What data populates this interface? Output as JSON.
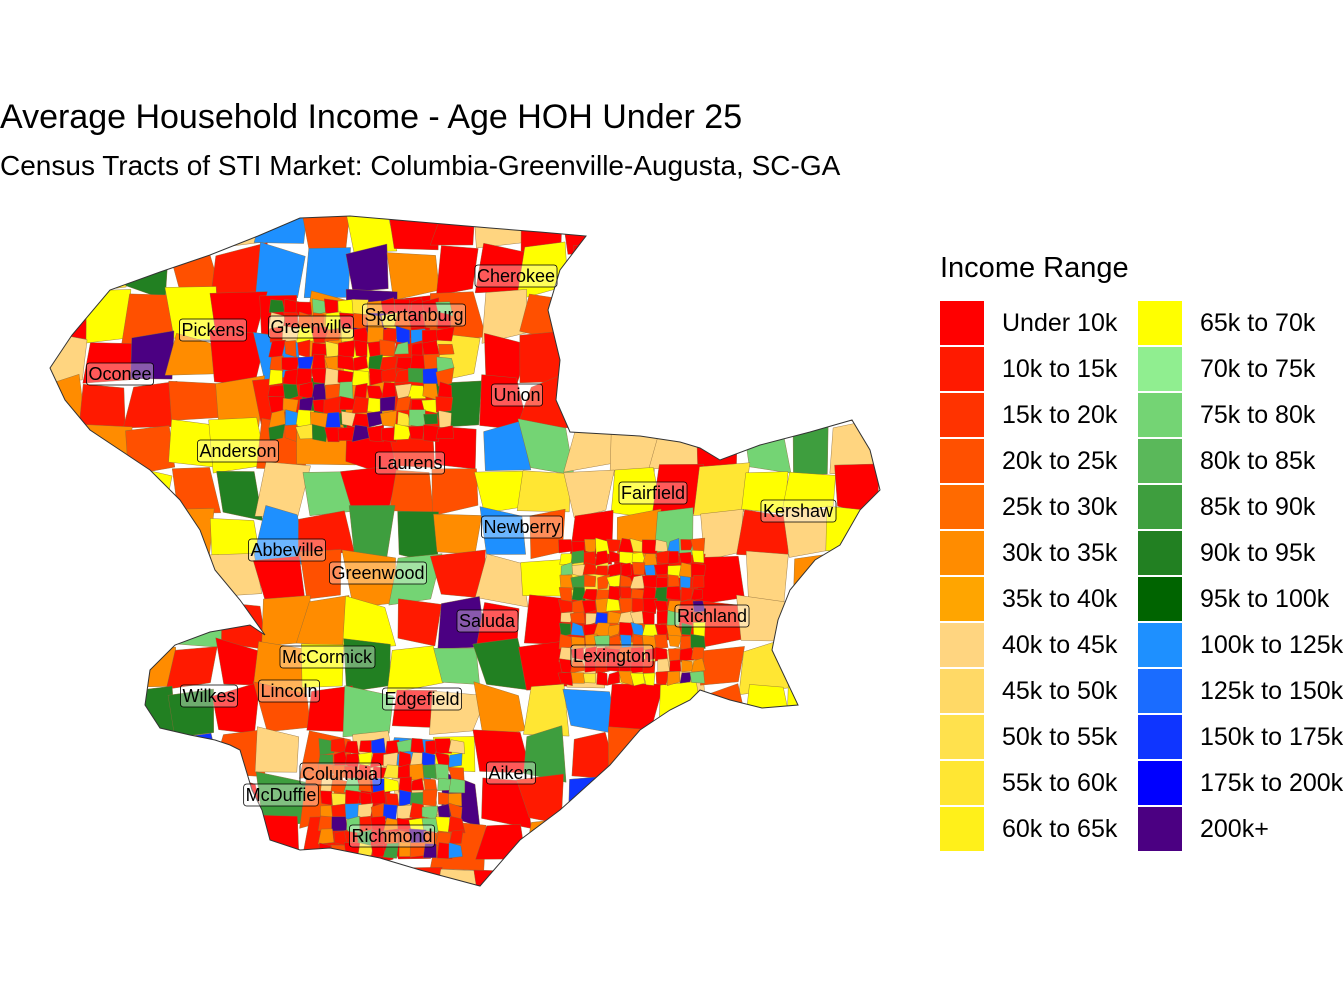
{
  "title": "Average Household Income - Age HOH Under 25",
  "subtitle": "Census Tracts of STI Market: Columbia-Greenville-Augusta, SC-GA",
  "legend": {
    "title": "Income Range",
    "items": [
      {
        "label": "Under 10k",
        "color": "#FF0000"
      },
      {
        "label": "10k to 15k",
        "color": "#FF1A00"
      },
      {
        "label": "15k to 20k",
        "color": "#FF3300"
      },
      {
        "label": "20k to 25k",
        "color": "#FF5000"
      },
      {
        "label": "25k to 30k",
        "color": "#FF6A00"
      },
      {
        "label": "30k to 35k",
        "color": "#FF8C00"
      },
      {
        "label": "35k to 40k",
        "color": "#FFA500"
      },
      {
        "label": "40k to 45k",
        "color": "#FFD580"
      },
      {
        "label": "45k to 50k",
        "color": "#FFD966"
      },
      {
        "label": "50k to 55k",
        "color": "#FFE14D"
      },
      {
        "label": "55k to 60k",
        "color": "#FFE633"
      },
      {
        "label": "60k to 65k",
        "color": "#FFF01A"
      },
      {
        "label": "65k to 70k",
        "color": "#FFFF00"
      },
      {
        "label": "70k to 75k",
        "color": "#90EE90"
      },
      {
        "label": "75k to 80k",
        "color": "#74D474"
      },
      {
        "label": "80k to 85k",
        "color": "#5AB85A"
      },
      {
        "label": "85k to 90k",
        "color": "#3E9E3E"
      },
      {
        "label": "90k to 95k",
        "color": "#228022"
      },
      {
        "label": "95k to 100k",
        "color": "#006400"
      },
      {
        "label": "100k to 125k",
        "color": "#1E90FF"
      },
      {
        "label": "125k to 150k",
        "color": "#1A6CFF"
      },
      {
        "label": "150k to 175k",
        "color": "#0F35FF"
      },
      {
        "label": "175k to 200k",
        "color": "#0000FF"
      },
      {
        "label": "200k+",
        "color": "#4B0082"
      }
    ]
  },
  "counties": [
    "Cherokee",
    "Pickens",
    "Greenville",
    "Spartanburg",
    "Oconee",
    "Union",
    "Anderson",
    "Laurens",
    "Fairfield",
    "Kershaw",
    "Newberry",
    "Abbeville",
    "Greenwood",
    "Saluda",
    "Richland",
    "McCormick",
    "Lexington",
    "Wilkes",
    "Lincoln",
    "Edgefield",
    "Aiken",
    "Columbia",
    "McDuffie",
    "Richmond"
  ]
}
